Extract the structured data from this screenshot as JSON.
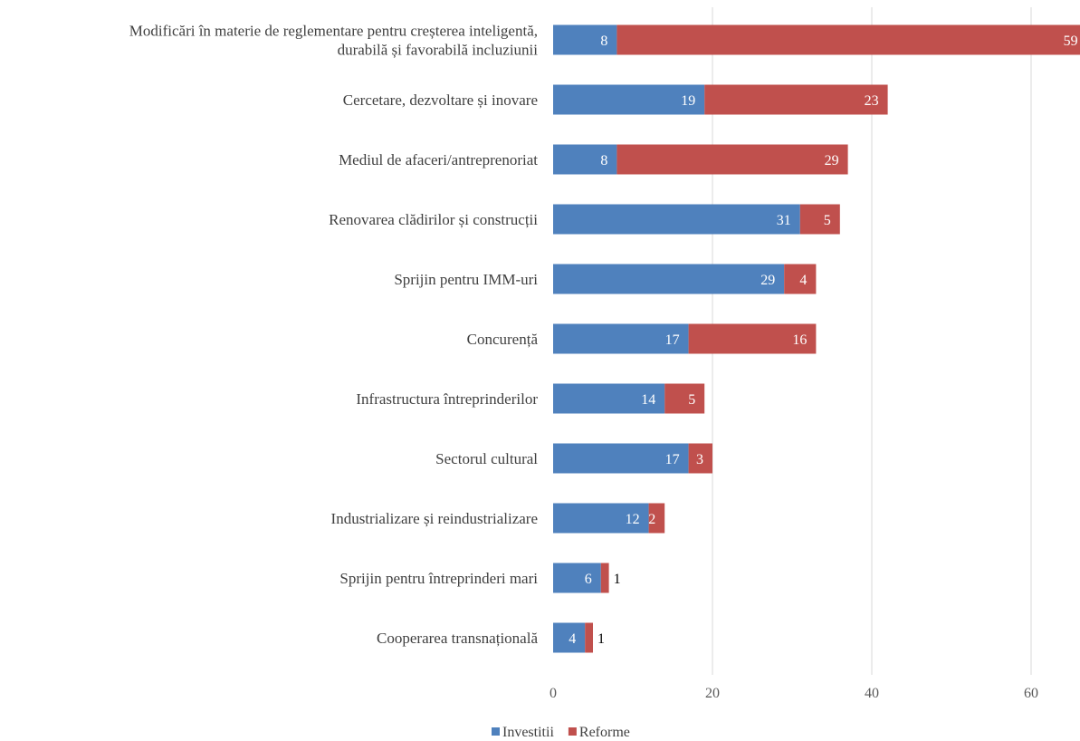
{
  "chart_data": {
    "type": "bar",
    "orientation": "horizontal",
    "stacked": true,
    "categories": [
      [
        "Modificări în materie de reglementare pentru creșterea inteligentă,",
        "durabilă și favorabilă incluziunii"
      ],
      [
        "Cercetare, dezvoltare și inovare"
      ],
      [
        "Mediul de afaceri/antreprenoriat"
      ],
      [
        "Renovarea clădirilor și construcții"
      ],
      [
        "Sprijin pentru IMM-uri"
      ],
      [
        "Concurență"
      ],
      [
        "Infrastructura întreprinderilor"
      ],
      [
        "Sectorul cultural"
      ],
      [
        "Industrializare și reindustrializare"
      ],
      [
        "Sprijin pentru întreprinderi mari"
      ],
      [
        "Cooperarea transnațională"
      ]
    ],
    "series": [
      {
        "name": "Investitii",
        "color": "#4f81bd",
        "values": [
          8,
          19,
          8,
          31,
          29,
          17,
          14,
          17,
          12,
          6,
          4
        ]
      },
      {
        "name": "Reforme",
        "color": "#c0504d",
        "values": [
          59,
          23,
          29,
          5,
          4,
          16,
          5,
          3,
          2,
          1,
          1
        ]
      }
    ],
    "xlim": [
      0,
      65
    ],
    "xticks": [
      0,
      20,
      40,
      60
    ],
    "grid": true,
    "gridColor": "#d9d9d9",
    "legend": "bottom",
    "title": "",
    "xlabel": "",
    "ylabel": ""
  }
}
